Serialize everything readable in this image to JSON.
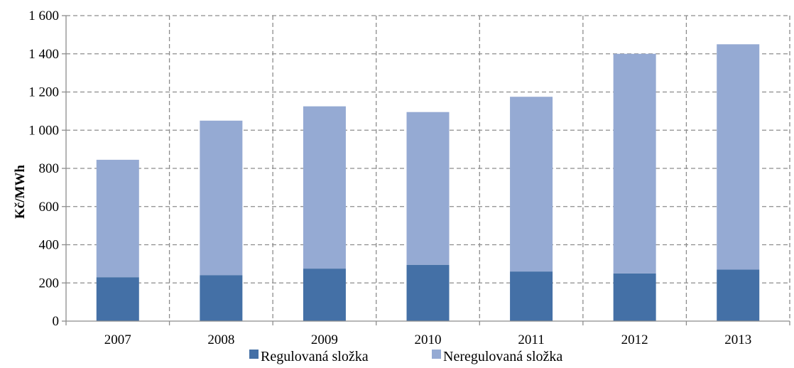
{
  "chart_data": {
    "type": "bar",
    "stacked": true,
    "categories": [
      "2007",
      "2008",
      "2009",
      "2010",
      "2011",
      "2012",
      "2013"
    ],
    "series": [
      {
        "name": "Regulovaná složka",
        "color": "#4470a6",
        "values": [
          230,
          240,
          275,
          295,
          260,
          250,
          270
        ]
      },
      {
        "name": "Neregulovaná složka",
        "color": "#95aad3",
        "values": [
          615,
          810,
          850,
          800,
          915,
          1150,
          1180
        ]
      }
    ],
    "ylabel": "Kč/MWh",
    "xlabel": "",
    "title": "",
    "ylim": [
      0,
      1600
    ],
    "yticks": [
      0,
      200,
      400,
      600,
      800,
      1000,
      1200,
      1400,
      1600
    ],
    "ytick_labels": [
      "0",
      "200",
      "400",
      "600",
      "800",
      "1 000",
      "1 200",
      "1 400",
      "1 600"
    ],
    "grid": true,
    "legend": "bottom"
  }
}
